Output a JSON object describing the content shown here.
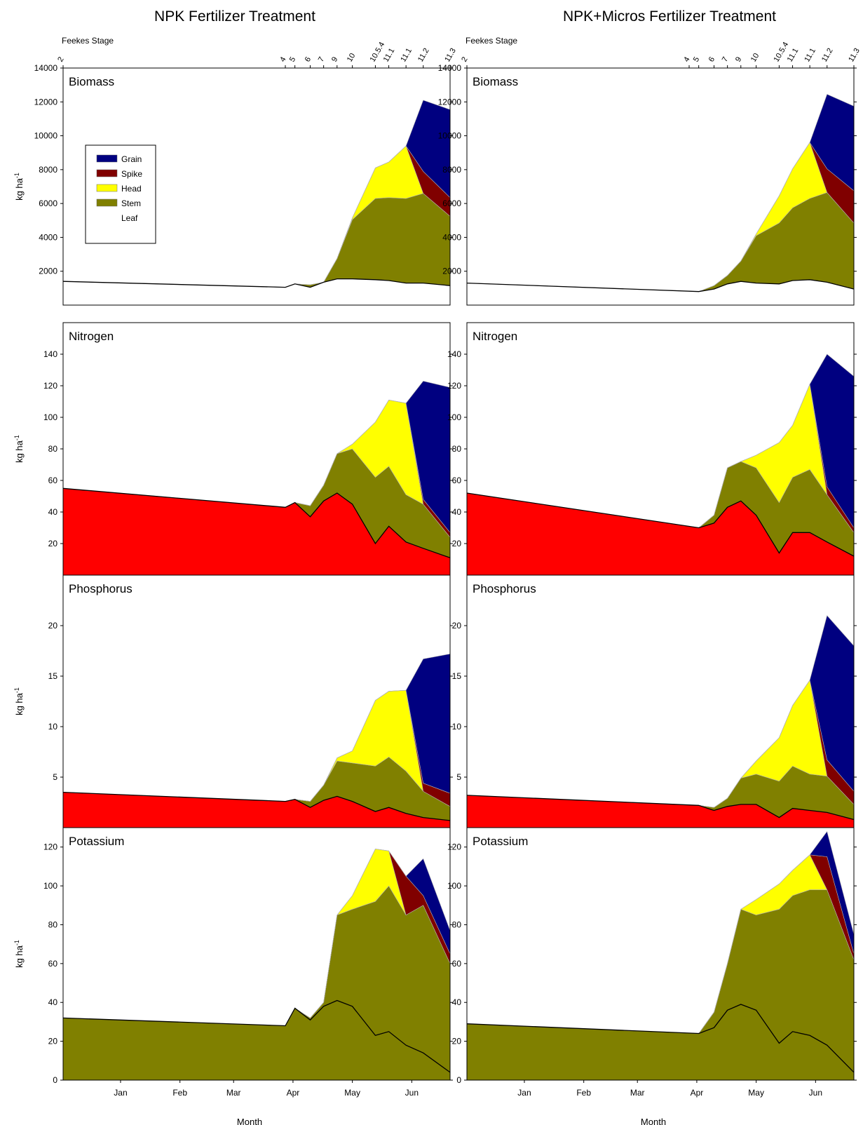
{
  "chart_data": {
    "type": "area",
    "stacking": "stacked",
    "grid": false,
    "legend": {
      "placement": "top-left of first panel",
      "entries": [
        {
          "name": "Grain",
          "color": "#000080"
        },
        {
          "name": "Spike",
          "color": "#800000"
        },
        {
          "name": "Head",
          "color": "#ffff00"
        },
        {
          "name": "Stem",
          "color": "#808000"
        },
        {
          "name": "Leaf",
          "color": "#ffffff"
        }
      ]
    },
    "colors": {
      "Grain": "#000080",
      "Spike": "#800000",
      "Head": "#ffff00",
      "Stem": "#808000",
      "Leaf": "#ffffff",
      "Red": "#ff0000"
    },
    "x_unit": "day of season (0 = first day shown, month ticks at Jan..Jun)",
    "x_range": [
      0,
      202
    ],
    "x_ticks": [
      {
        "label": "Jan",
        "x": 30
      },
      {
        "label": "Feb",
        "x": 61
      },
      {
        "label": "Mar",
        "x": 89
      },
      {
        "label": "Apr",
        "x": 120
      },
      {
        "label": "May",
        "x": 151
      },
      {
        "label": "Jun",
        "x": 182
      }
    ],
    "xlabel": "Month",
    "feekes": {
      "label": "Feekes Stage",
      "stages": [
        {
          "label": "2",
          "x": 0
        },
        {
          "label": "4",
          "x": 116
        },
        {
          "label": "5",
          "x": 121
        },
        {
          "label": "6",
          "x": 129
        },
        {
          "label": "7",
          "x": 136
        },
        {
          "label": "9",
          "x": 143
        },
        {
          "label": "10",
          "x": 151
        },
        {
          "label": "10.5.4",
          "x": 163
        },
        {
          "label": "11.1",
          "x": 170
        },
        {
          "label": "11.1",
          "x": 179
        },
        {
          "label": "11.2",
          "x": 188
        },
        {
          "label": "11.3",
          "x": 202
        }
      ]
    },
    "columns": [
      {
        "title": "NPK Fertilizer Treatment"
      },
      {
        "title": "NPK+Micros Fertilizer Treatment"
      }
    ],
    "rows": [
      {
        "label": "Biomass",
        "ylabel": "kg ha-1",
        "ylim": [
          0,
          14000
        ],
        "yticks": [
          2000,
          4000,
          6000,
          8000,
          10000,
          12000,
          14000
        ],
        "base_color": "#808000"
      },
      {
        "label": "Nitrogen",
        "ylabel": "kg ha-1",
        "ylim": [
          0,
          160
        ],
        "yticks": [
          20,
          40,
          60,
          80,
          100,
          120,
          140
        ],
        "base_color": "#ff0000"
      },
      {
        "label": "Phosphorus",
        "ylabel": "kg ha-1",
        "ylim": [
          0,
          25
        ],
        "yticks": [
          5,
          10,
          15,
          20
        ],
        "base_color": "#ff0000"
      },
      {
        "label": "Potassium",
        "ylabel": "kg ha-1",
        "ylim": [
          0,
          130
        ],
        "yticks": [
          0,
          20,
          40,
          60,
          80,
          100,
          120
        ],
        "base_color": "#808000"
      }
    ],
    "panels": [
      {
        "row": 0,
        "col": 0,
        "x": [
          0,
          116,
          121,
          129,
          136,
          143,
          151,
          163,
          170,
          179,
          188,
          202
        ],
        "layers": [
          {
            "name": "Leaf",
            "values": [
              1400,
              1050,
              1250,
              1050,
              1350,
              1550,
              1550,
              1500,
              1450,
              1300,
              1300,
              1150
            ]
          },
          {
            "name": "Stem",
            "values": [
              0,
              0,
              0,
              150,
              0,
              1200,
              3500,
              4800,
              4900,
              5000,
              5300,
              4100
            ]
          },
          {
            "name": "Head",
            "values": [
              0,
              0,
              0,
              0,
              0,
              0,
              100,
              1800,
              2100,
              3100,
              0,
              0
            ]
          },
          {
            "name": "Spike",
            "values": [
              0,
              0,
              0,
              0,
              0,
              0,
              0,
              0,
              0,
              0,
              1300,
              1100
            ]
          },
          {
            "name": "Grain",
            "values": [
              0,
              0,
              0,
              0,
              0,
              0,
              0,
              0,
              0,
              0,
              4200,
              5200
            ]
          }
        ]
      },
      {
        "row": 0,
        "col": 1,
        "x": [
          0,
          121,
          129,
          136,
          143,
          151,
          163,
          170,
          179,
          188,
          202
        ],
        "layers": [
          {
            "name": "Leaf",
            "values": [
              1300,
              800,
              950,
              1250,
              1400,
              1300,
              1250,
              1450,
              1500,
              1350,
              950
            ]
          },
          {
            "name": "Stem",
            "values": [
              0,
              0,
              200,
              500,
              1200,
              2800,
              3600,
              4300,
              4800,
              5300,
              3900
            ]
          },
          {
            "name": "Head",
            "values": [
              0,
              0,
              0,
              0,
              0,
              100,
              1600,
              2300,
              3300,
              0,
              0
            ]
          },
          {
            "name": "Spike",
            "values": [
              0,
              0,
              0,
              0,
              0,
              0,
              0,
              0,
              0,
              1400,
              1900
            ]
          },
          {
            "name": "Grain",
            "values": [
              0,
              0,
              0,
              0,
              0,
              0,
              0,
              0,
              0,
              4400,
              5000
            ]
          }
        ]
      },
      {
        "row": 1,
        "col": 0,
        "x": [
          0,
          116,
          121,
          129,
          136,
          143,
          151,
          163,
          170,
          179,
          188,
          202
        ],
        "layers": [
          {
            "name": "Red",
            "values": [
              55,
              43,
              46,
              37,
              47,
              52,
              45,
              20,
              31,
              21,
              17,
              11
            ]
          },
          {
            "name": "Stem",
            "values": [
              0,
              0,
              0,
              7,
              10,
              25,
              35,
              42,
              38,
              30,
              28,
              13
            ]
          },
          {
            "name": "Head",
            "values": [
              0,
              0,
              0,
              0,
              0,
              0,
              3,
              35,
              42,
              58,
              0,
              0
            ]
          },
          {
            "name": "Spike",
            "values": [
              0,
              0,
              0,
              0,
              0,
              0,
              0,
              0,
              0,
              0,
              3,
              3
            ]
          },
          {
            "name": "Grain",
            "values": [
              0,
              0,
              0,
              0,
              0,
              0,
              0,
              0,
              0,
              0,
              75,
              92
            ]
          }
        ]
      },
      {
        "row": 1,
        "col": 1,
        "x": [
          0,
          121,
          129,
          136,
          143,
          151,
          163,
          170,
          179,
          188,
          202
        ],
        "layers": [
          {
            "name": "Red",
            "values": [
              52,
              30,
              33,
              43,
              47,
              38,
              14,
              27,
              27,
              21,
              12
            ]
          },
          {
            "name": "Stem",
            "values": [
              0,
              0,
              5,
              25,
              25,
              30,
              32,
              35,
              40,
              30,
              15
            ]
          },
          {
            "name": "Head",
            "values": [
              0,
              0,
              0,
              0,
              0,
              8,
              38,
              33,
              54,
              0,
              0
            ]
          },
          {
            "name": "Spike",
            "values": [
              0,
              0,
              0,
              0,
              0,
              0,
              0,
              0,
              0,
              5,
              3
            ]
          },
          {
            "name": "Grain",
            "values": [
              0,
              0,
              0,
              0,
              0,
              0,
              0,
              0,
              0,
              84,
              96
            ]
          }
        ]
      },
      {
        "row": 2,
        "col": 0,
        "x": [
          0,
          116,
          121,
          129,
          136,
          143,
          151,
          163,
          170,
          179,
          188,
          202
        ],
        "layers": [
          {
            "name": "Red",
            "values": [
              3.5,
              2.6,
              2.8,
              2.0,
              2.7,
              3.1,
              2.6,
              1.6,
              2.0,
              1.4,
              1.0,
              0.7
            ]
          },
          {
            "name": "Stem",
            "values": [
              0,
              0,
              0,
              0.6,
              1.5,
              3.5,
              3.8,
              4.5,
              5.0,
              4.2,
              2.6,
              1.4
            ]
          },
          {
            "name": "Head",
            "values": [
              0,
              0,
              0,
              0,
              0,
              0.3,
              1.2,
              6.5,
              6.5,
              8.0,
              0,
              0
            ]
          },
          {
            "name": "Spike",
            "values": [
              0,
              0,
              0,
              0,
              0,
              0,
              0,
              0,
              0,
              0,
              0.8,
              1.3
            ]
          },
          {
            "name": "Grain",
            "values": [
              0,
              0,
              0,
              0,
              0,
              0,
              0,
              0,
              0,
              0,
              12.3,
              13.8
            ]
          }
        ]
      },
      {
        "row": 2,
        "col": 1,
        "x": [
          0,
          121,
          129,
          136,
          143,
          151,
          163,
          170,
          179,
          188,
          202
        ],
        "layers": [
          {
            "name": "Red",
            "values": [
              3.2,
              2.2,
              1.7,
              2.1,
              2.3,
              2.3,
              1.0,
              1.9,
              1.7,
              1.5,
              0.8
            ]
          },
          {
            "name": "Stem",
            "values": [
              0,
              0,
              0.3,
              0.8,
              2.6,
              3.0,
              3.6,
              4.2,
              3.6,
              3.6,
              1.5
            ]
          },
          {
            "name": "Head",
            "values": [
              0,
              0,
              0,
              0,
              0,
              1.3,
              4.3,
              6.0,
              9.3,
              0,
              0
            ]
          },
          {
            "name": "Spike",
            "values": [
              0,
              0,
              0,
              0,
              0,
              0,
              0,
              0,
              0,
              1.6,
              1.3
            ]
          },
          {
            "name": "Grain",
            "values": [
              0,
              0,
              0,
              0,
              0,
              0,
              0,
              0,
              0,
              14.3,
              14.4
            ]
          }
        ]
      },
      {
        "row": 3,
        "col": 0,
        "x": [
          0,
          116,
          121,
          129,
          136,
          143,
          151,
          163,
          170,
          179,
          188,
          202
        ],
        "layers": [
          {
            "name": "Stem",
            "values": [
              32,
              28,
              37,
              32,
              40,
              85,
              88,
              92,
              100,
              85,
              90,
              60
            ]
          },
          {
            "name": "Head",
            "values": [
              0,
              0,
              0,
              0,
              0,
              0,
              7,
              27,
              18,
              0,
              0,
              0
            ]
          },
          {
            "name": "Spike",
            "values": [
              0,
              0,
              0,
              0,
              0,
              0,
              0,
              0,
              0,
              20,
              5,
              5
            ]
          },
          {
            "name": "Grain",
            "values": [
              0,
              0,
              0,
              0,
              0,
              0,
              0,
              0,
              0,
              0,
              19,
              12
            ]
          }
        ],
        "line": [
          32,
          28,
          37,
          31,
          38,
          41,
          38,
          23,
          25,
          18,
          14,
          4
        ]
      },
      {
        "row": 3,
        "col": 1,
        "x": [
          0,
          121,
          129,
          136,
          143,
          151,
          163,
          170,
          179,
          188,
          202
        ],
        "layers": [
          {
            "name": "Stem",
            "values": [
              29,
              24,
              35,
              60,
              88,
              85,
              88,
              95,
              98,
              98,
              62
            ]
          },
          {
            "name": "Head",
            "values": [
              0,
              0,
              0,
              0,
              0,
              8,
              13,
              13,
              18,
              0,
              0
            ]
          },
          {
            "name": "Spike",
            "values": [
              0,
              0,
              0,
              0,
              0,
              0,
              0,
              0,
              0,
              17,
              3
            ]
          },
          {
            "name": "Grain",
            "values": [
              0,
              0,
              0,
              0,
              0,
              0,
              0,
              0,
              0,
              13,
              10
            ]
          }
        ],
        "line": [
          29,
          24,
          27,
          36,
          39,
          36,
          19,
          25,
          23,
          18,
          4
        ]
      }
    ]
  }
}
